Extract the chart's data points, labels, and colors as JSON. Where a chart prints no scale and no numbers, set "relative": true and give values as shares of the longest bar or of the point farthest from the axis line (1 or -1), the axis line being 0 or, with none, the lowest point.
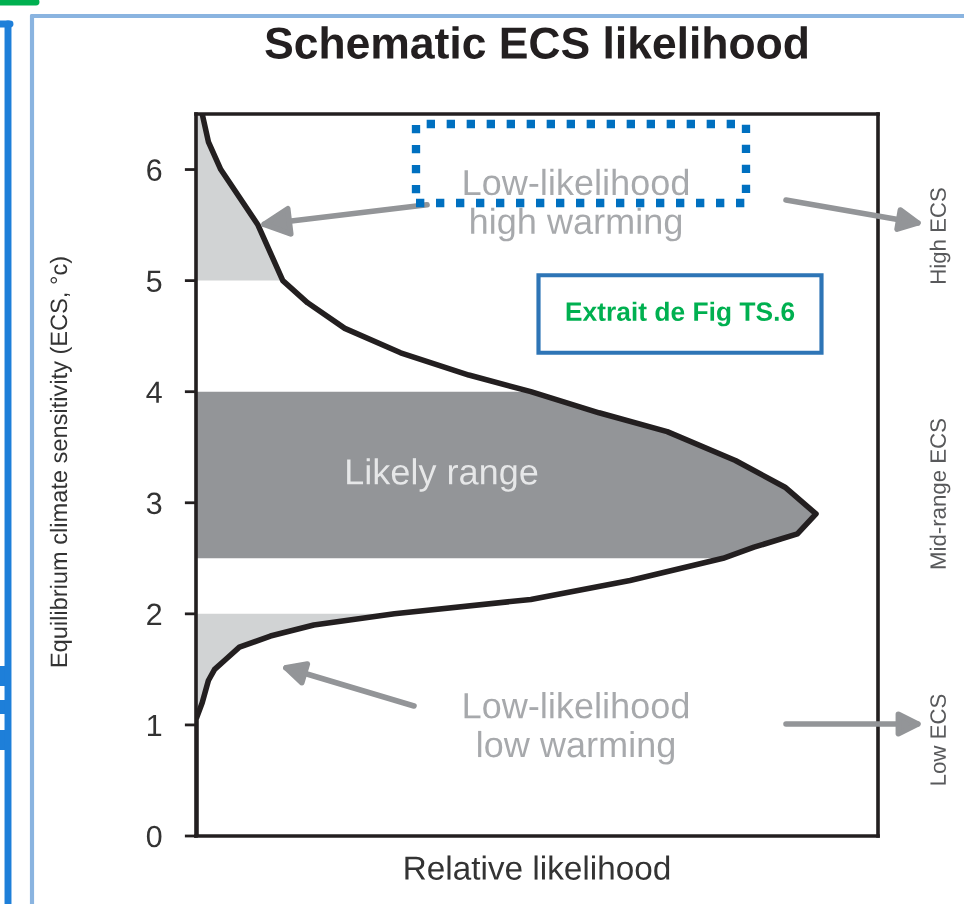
{
  "chart_data": {
    "type": "line",
    "orientation": "horizontal",
    "relative": true,
    "title": "Schematic ECS likelihood",
    "xlabel": "Relative likelihood",
    "ylabel": "Equilibrium climate sensitivity (ECS, °c)",
    "x": [
      0,
      1.05,
      1.2,
      1.4,
      1.5,
      1.6,
      1.7,
      1.8,
      1.9,
      2.0,
      2.13,
      2.3,
      2.5,
      2.6,
      2.72,
      2.9,
      3.14,
      3.38,
      3.64,
      3.81,
      4.0,
      4.15,
      4.35,
      4.57,
      4.8,
      5.0,
      5.5,
      6.0,
      6.25,
      6.5
    ],
    "series": [
      {
        "type": "area",
        "color": "#d1d3d4",
        "x": [
          5.0,
          5.5,
          6.0,
          6.25,
          6.5
        ],
        "values": [
          0.14,
          0.1,
          0.04,
          0.02,
          0.01
        ]
      },
      {
        "type": "area",
        "name": "Likely range",
        "color": "#939598",
        "x": [
          2.5,
          2.6,
          2.72,
          2.9,
          3.14,
          3.38,
          3.64,
          3.81,
          4.0
        ],
        "values": [
          0.85,
          0.9,
          0.97,
          1,
          0.95,
          0.87,
          0.76,
          0.65,
          0.54
        ]
      },
      {
        "type": "area",
        "color": "#d1d3d4",
        "x": [
          1.05,
          1.2,
          1.4,
          1.5,
          1.6,
          1.7,
          1.8,
          1.9,
          2.0
        ],
        "values": [
          0,
          0.01,
          0.02,
          0.03,
          0.05,
          0.07,
          0.12,
          0.19,
          0.32
        ]
      },
      {
        "color": "#231f20",
        "values": [
          0,
          0,
          0.01,
          0.02,
          0.03,
          0.05,
          0.07,
          0.12,
          0.19,
          0.32,
          0.54,
          0.7,
          0.85,
          0.9,
          0.97,
          1,
          0.95,
          0.87,
          0.76,
          0.65,
          0.54,
          0.44,
          0.33,
          0.24,
          0.18,
          0.14,
          0.1,
          0.04,
          0.02,
          0.01
        ]
      }
    ],
    "ylim": [
      0,
      6.5
    ],
    "yticks": [
      0,
      1,
      2,
      3,
      4,
      5,
      6
    ],
    "annotations": [
      {
        "text": "Low-likelihood\nhigh warming",
        "x": 0.1,
        "y": 5.5
      },
      "Low-likelihood\nlow warming",
      "High ECS",
      "Mid-range ECS",
      "Low ECS",
      "Extrait de Fig TS.6"
    ]
  }
}
